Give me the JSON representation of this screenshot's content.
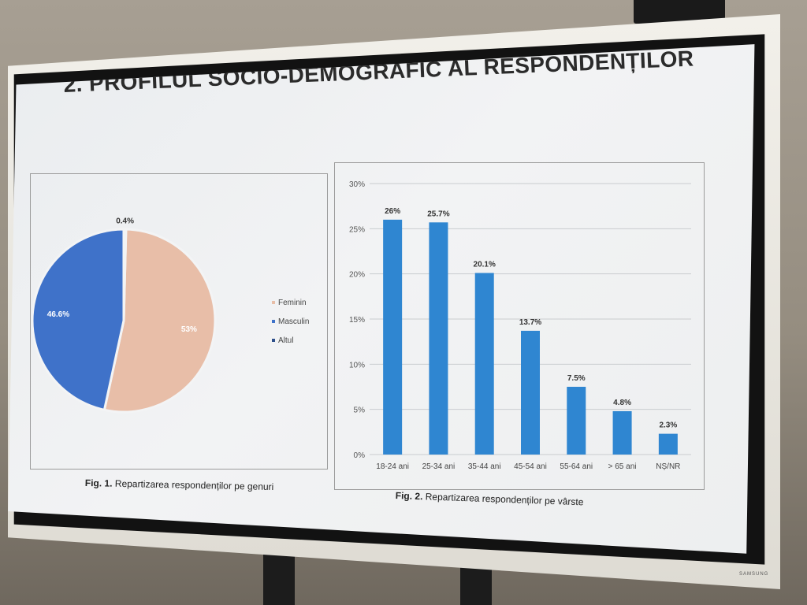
{
  "slide": {
    "title": "2. PROFILUL SOCIO-DEMOGRAFIC AL RESPONDENȚILOR",
    "brand": "SAMSUNG"
  },
  "figures": {
    "fig1": {
      "label": "Fig.",
      "number": "1.",
      "caption": "Repartizarea respondenților pe genuri"
    },
    "fig2": {
      "label": "Fig.",
      "number": "2.",
      "caption": "Repartizarea respondenților pe vârste"
    }
  },
  "colors": {
    "feminin": "#e8bea8",
    "masculin": "#3f72c9",
    "altul": "#2e4f8a",
    "bar": "#2f86d1",
    "grid": "#c9cccf"
  },
  "chart_data": [
    {
      "type": "pie",
      "categories": [
        "Feminin",
        "Masculin",
        "Altul"
      ],
      "values": [
        53,
        46.6,
        0.4
      ],
      "labels": [
        "53%",
        "46.6%",
        "0.4%"
      ],
      "legend_position": "right"
    },
    {
      "type": "bar",
      "categories": [
        "18-24 ani",
        "25-34 ani",
        "35-44 ani",
        "45-54 ani",
        "55-64 ani",
        "> 65 ani",
        "NȘ/NR"
      ],
      "values": [
        26,
        25.7,
        20.1,
        13.7,
        7.5,
        4.8,
        2.3
      ],
      "labels": [
        "26%",
        "25.7%",
        "20.1%",
        "13.7%",
        "7.5%",
        "4.8%",
        "2.3%"
      ],
      "ylim": [
        0,
        30
      ],
      "yticks": [
        "0%",
        "5%",
        "10%",
        "15%",
        "20%",
        "25%",
        "30%"
      ],
      "grid": true
    }
  ]
}
